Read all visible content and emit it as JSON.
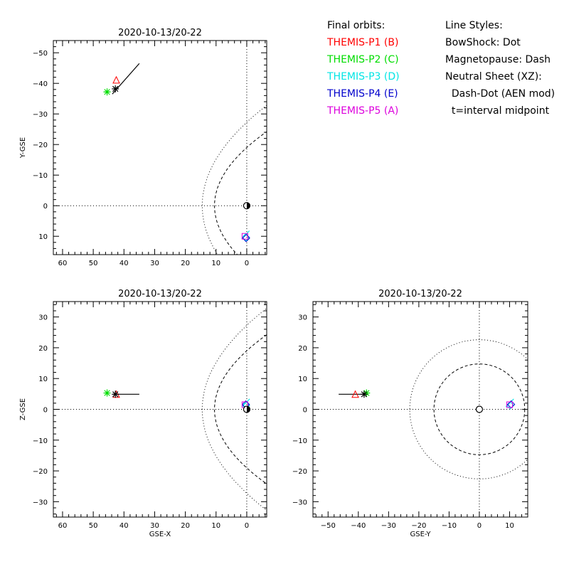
{
  "legend": {
    "orbits_title": "Final orbits:",
    "orbits": [
      {
        "label": "THEMIS-P1 (B)",
        "color": "#ff0000"
      },
      {
        "label": "THEMIS-P2 (C)",
        "color": "#00dd00"
      },
      {
        "label": "THEMIS-P3 (D)",
        "color": "#00e5e5"
      },
      {
        "label": "THEMIS-P4 (E)",
        "color": "#0000cc"
      },
      {
        "label": "THEMIS-P5 (A)",
        "color": "#dd00dd"
      }
    ],
    "styles_title": "Line Styles:",
    "styles": [
      "BowShock: Dot",
      "Magnetopause: Dash",
      "Neutral Sheet (XZ):",
      "  Dash-Dot (AEN mod)",
      "  t=interval midpoint"
    ]
  },
  "chart_data": [
    {
      "type": "scatter",
      "title": "2020-10-13/20-22",
      "xlabel": "",
      "ylabel": "Y-GSE",
      "xlim": [
        63,
        -6.5
      ],
      "ylim": [
        16,
        -54
      ],
      "xticks": [
        60,
        50,
        40,
        30,
        20,
        10,
        0
      ],
      "yticks": [
        -50,
        -40,
        -30,
        -20,
        -10,
        0,
        10
      ],
      "bowshock_style": "dot",
      "magnetopause_style": "dash",
      "orbit_track": [
        [
          43.8,
          -36.5
        ],
        [
          35,
          -46.5
        ]
      ],
      "markers": [
        {
          "probe": "THEMIS-P1",
          "symbol": "triangle",
          "color": "#ff0000",
          "x": 42.5,
          "y": -41
        },
        {
          "probe": "THEMIS-P2",
          "symbol": "asterisk",
          "color": "#00dd00",
          "x": 45.5,
          "y": -37.2
        },
        {
          "probe": "THEMIS-P3",
          "symbol": "diamond",
          "color": "#00e5e5",
          "x": 0.3,
          "y": 10.3
        },
        {
          "probe": "THEMIS-P4",
          "symbol": "diamond",
          "color": "#0000cc",
          "x": 0.2,
          "y": 10.6
        },
        {
          "probe": "THEMIS-P5",
          "symbol": "square",
          "color": "#dd00dd",
          "x": 0.6,
          "y": 10.0
        },
        {
          "probe": "midpoint",
          "symbol": "asterisk",
          "color": "#000000",
          "x": 42.8,
          "y": -38.2
        },
        {
          "probe": "Earth",
          "symbol": "earth",
          "color": "#000000",
          "x": 0,
          "y": 0
        }
      ]
    },
    {
      "type": "scatter",
      "title": "2020-10-13/20-22",
      "xlabel": "GSE-X",
      "ylabel": "Z-GSE",
      "xlim": [
        63,
        -6.5
      ],
      "ylim": [
        -35,
        35
      ],
      "xticks": [
        60,
        50,
        40,
        30,
        20,
        10,
        0
      ],
      "yticks": [
        -30,
        -20,
        -10,
        0,
        10,
        20,
        30
      ],
      "bowshock_style": "dot",
      "magnetopause_style": "dash",
      "orbit_track": [
        [
          43.5,
          4.9
        ],
        [
          35,
          4.9
        ]
      ],
      "markers": [
        {
          "probe": "THEMIS-P1",
          "symbol": "triangle",
          "color": "#ff0000",
          "x": 42.5,
          "y": 4.8
        },
        {
          "probe": "THEMIS-P2",
          "symbol": "asterisk",
          "color": "#00dd00",
          "x": 45.5,
          "y": 5.3
        },
        {
          "probe": "THEMIS-P3",
          "symbol": "diamond",
          "color": "#00e5e5",
          "x": 0.2,
          "y": 1.3
        },
        {
          "probe": "THEMIS-P4",
          "symbol": "diamond",
          "color": "#0000cc",
          "x": 0.3,
          "y": 1.6
        },
        {
          "probe": "THEMIS-P5",
          "symbol": "square",
          "color": "#dd00dd",
          "x": 0.6,
          "y": 1.5
        },
        {
          "probe": "midpoint",
          "symbol": "asterisk",
          "color": "#000000",
          "x": 42.8,
          "y": 4.9
        },
        {
          "probe": "Earth",
          "symbol": "earth",
          "color": "#000000",
          "x": 0,
          "y": 0
        }
      ]
    },
    {
      "type": "scatter",
      "title": "2020-10-13/20-22",
      "xlabel": "GSE-Y",
      "ylabel": "",
      "xlim": [
        -55,
        16
      ],
      "ylim": [
        -35,
        35
      ],
      "xticks": [
        -50,
        -40,
        -30,
        -20,
        -10,
        0,
        10
      ],
      "yticks": [
        -30,
        -20,
        -10,
        0,
        10,
        20,
        30
      ],
      "bowshock_style": "dot",
      "magnetopause_style": "dash",
      "orbit_track": [
        [
          -46.5,
          4.9
        ],
        [
          -37.5,
          4.9
        ]
      ],
      "markers": [
        {
          "probe": "THEMIS-P1",
          "symbol": "triangle",
          "color": "#ff0000",
          "x": -41,
          "y": 4.8
        },
        {
          "probe": "THEMIS-P2",
          "symbol": "asterisk",
          "color": "#00dd00",
          "x": -37.3,
          "y": 5.3
        },
        {
          "probe": "THEMIS-P3",
          "symbol": "diamond",
          "color": "#00e5e5",
          "x": 10.2,
          "y": 1.3
        },
        {
          "probe": "THEMIS-P4",
          "symbol": "diamond",
          "color": "#0000cc",
          "x": 10.5,
          "y": 1.6
        },
        {
          "probe": "THEMIS-P5",
          "symbol": "square",
          "color": "#dd00dd",
          "x": 10.0,
          "y": 1.5
        },
        {
          "probe": "midpoint",
          "symbol": "asterisk",
          "color": "#000000",
          "x": -38.1,
          "y": 4.9
        },
        {
          "probe": "Earth",
          "symbol": "earth",
          "color": "#000000",
          "x": 0,
          "y": 0
        }
      ]
    }
  ]
}
